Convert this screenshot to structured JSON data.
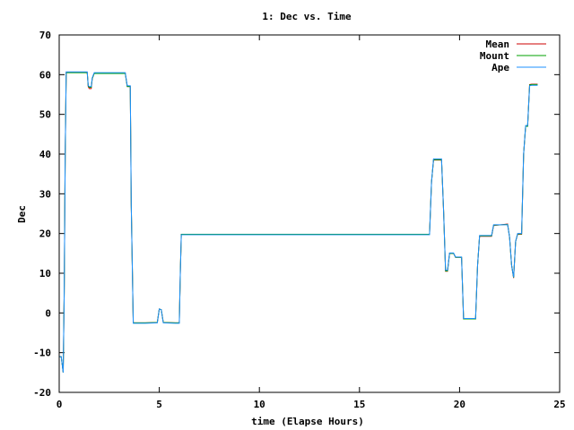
{
  "chart_data": {
    "type": "line",
    "title": "1: Dec vs. Time",
    "xlabel": "time (Elapse Hours)",
    "ylabel": "Dec",
    "xlim": [
      0,
      25
    ],
    "ylim": [
      -20,
      70
    ],
    "xticks": [
      0,
      5,
      10,
      15,
      20,
      25
    ],
    "yticks": [
      -20,
      -10,
      0,
      10,
      20,
      30,
      40,
      50,
      60,
      70
    ],
    "grid": false,
    "legend_position": "top-right",
    "series": [
      {
        "name": "Mean",
        "color": "#cc0000",
        "points": [
          [
            0,
            -11
          ],
          [
            0.1,
            -11
          ],
          [
            0.15,
            -13
          ],
          [
            0.2,
            -15
          ],
          [
            0.25,
            5
          ],
          [
            0.3,
            40
          ],
          [
            0.35,
            60.6
          ],
          [
            1.3,
            60.6
          ],
          [
            1.4,
            60.6
          ],
          [
            1.45,
            57
          ],
          [
            1.5,
            56.5
          ],
          [
            1.6,
            56.5
          ],
          [
            1.65,
            59
          ],
          [
            1.75,
            60.4
          ],
          [
            3.2,
            60.4
          ],
          [
            3.3,
            60.4
          ],
          [
            3.4,
            57
          ],
          [
            3.55,
            57
          ],
          [
            3.6,
            27
          ],
          [
            3.7,
            -2.5
          ],
          [
            4.3,
            -2.5
          ],
          [
            4.9,
            -2.4
          ],
          [
            5.0,
            1
          ],
          [
            5.1,
            0.8
          ],
          [
            5.2,
            -2.4
          ],
          [
            5.8,
            -2.5
          ],
          [
            6.0,
            -2.5
          ],
          [
            6.05,
            10
          ],
          [
            6.1,
            19.8
          ],
          [
            18.5,
            19.8
          ],
          [
            18.6,
            33
          ],
          [
            18.7,
            38.5
          ],
          [
            19.1,
            38.5
          ],
          [
            19.2,
            26
          ],
          [
            19.3,
            10.5
          ],
          [
            19.4,
            10.5
          ],
          [
            19.5,
            15
          ],
          [
            19.7,
            15
          ],
          [
            19.8,
            14
          ],
          [
            20.1,
            14
          ],
          [
            20.2,
            -1.5
          ],
          [
            20.8,
            -1.5
          ],
          [
            20.9,
            12
          ],
          [
            21.0,
            19.3
          ],
          [
            21.6,
            19.3
          ],
          [
            21.7,
            22
          ],
          [
            22.4,
            22.4
          ],
          [
            22.5,
            19
          ],
          [
            22.6,
            12
          ],
          [
            22.7,
            8.8
          ],
          [
            22.8,
            18
          ],
          [
            22.9,
            19.8
          ],
          [
            23.1,
            19.8
          ],
          [
            23.2,
            40
          ],
          [
            23.3,
            47
          ],
          [
            23.4,
            47
          ],
          [
            23.5,
            57.5
          ],
          [
            23.6,
            57.6
          ],
          [
            23.9,
            57.6
          ]
        ]
      },
      {
        "name": "Mount",
        "color": "#00a000",
        "points": [
          [
            0,
            -11
          ],
          [
            0.1,
            -11
          ],
          [
            0.15,
            -13
          ],
          [
            0.2,
            -15
          ],
          [
            0.25,
            5
          ],
          [
            0.3,
            40
          ],
          [
            0.35,
            60.5
          ],
          [
            1.3,
            60.5
          ],
          [
            1.4,
            60.5
          ],
          [
            1.45,
            57.2
          ],
          [
            1.5,
            56.8
          ],
          [
            1.6,
            56.8
          ],
          [
            1.65,
            59
          ],
          [
            1.75,
            60.3
          ],
          [
            3.2,
            60.3
          ],
          [
            3.3,
            60.3
          ],
          [
            3.4,
            57
          ],
          [
            3.55,
            57
          ],
          [
            3.6,
            27
          ],
          [
            3.7,
            -2.5
          ],
          [
            4.3,
            -2.5
          ],
          [
            4.9,
            -2.4
          ],
          [
            5.0,
            1
          ],
          [
            5.1,
            0.8
          ],
          [
            5.2,
            -2.4
          ],
          [
            5.8,
            -2.5
          ],
          [
            6.0,
            -2.5
          ],
          [
            6.05,
            10
          ],
          [
            6.1,
            19.8
          ],
          [
            18.5,
            19.8
          ],
          [
            18.6,
            33
          ],
          [
            18.7,
            38.6
          ],
          [
            19.1,
            38.6
          ],
          [
            19.2,
            26
          ],
          [
            19.3,
            10.6
          ],
          [
            19.4,
            10.6
          ],
          [
            19.5,
            15
          ],
          [
            19.7,
            15
          ],
          [
            19.8,
            14
          ],
          [
            20.1,
            14
          ],
          [
            20.2,
            -1.5
          ],
          [
            20.8,
            -1.5
          ],
          [
            20.9,
            12
          ],
          [
            21.0,
            19.4
          ],
          [
            21.6,
            19.4
          ],
          [
            21.7,
            22.1
          ],
          [
            22.4,
            22.3
          ],
          [
            22.5,
            19
          ],
          [
            22.6,
            12
          ],
          [
            22.7,
            8.9
          ],
          [
            22.8,
            18
          ],
          [
            22.9,
            19.9
          ],
          [
            23.1,
            19.9
          ],
          [
            23.2,
            40
          ],
          [
            23.3,
            47
          ],
          [
            23.4,
            47
          ],
          [
            23.5,
            57.4
          ],
          [
            23.6,
            57.5
          ],
          [
            23.9,
            57.5
          ]
        ]
      },
      {
        "name": "Ape",
        "color": "#1e90ff",
        "points": [
          [
            0,
            -11
          ],
          [
            0.1,
            -11
          ],
          [
            0.15,
            -13
          ],
          [
            0.2,
            -15
          ],
          [
            0.25,
            5
          ],
          [
            0.3,
            40
          ],
          [
            0.35,
            60.7
          ],
          [
            1.3,
            60.7
          ],
          [
            1.4,
            60.7
          ],
          [
            1.45,
            57.3
          ],
          [
            1.5,
            57
          ],
          [
            1.6,
            57
          ],
          [
            1.65,
            59.2
          ],
          [
            1.75,
            60.5
          ],
          [
            3.2,
            60.5
          ],
          [
            3.3,
            60.5
          ],
          [
            3.4,
            57.2
          ],
          [
            3.55,
            57.2
          ],
          [
            3.6,
            27
          ],
          [
            3.7,
            -2.6
          ],
          [
            4.3,
            -2.6
          ],
          [
            4.9,
            -2.5
          ],
          [
            5.0,
            1
          ],
          [
            5.1,
            0.8
          ],
          [
            5.2,
            -2.5
          ],
          [
            5.8,
            -2.6
          ],
          [
            6.0,
            -2.6
          ],
          [
            6.05,
            10
          ],
          [
            6.1,
            19.7
          ],
          [
            18.5,
            19.7
          ],
          [
            18.6,
            33
          ],
          [
            18.7,
            38.8
          ],
          [
            19.1,
            38.8
          ],
          [
            19.2,
            26
          ],
          [
            19.3,
            10.8
          ],
          [
            19.4,
            10.8
          ],
          [
            19.5,
            15.1
          ],
          [
            19.7,
            15.1
          ],
          [
            19.8,
            14.1
          ],
          [
            20.1,
            14.1
          ],
          [
            20.2,
            -1.4
          ],
          [
            20.8,
            -1.4
          ],
          [
            20.9,
            12
          ],
          [
            21.0,
            19.5
          ],
          [
            21.6,
            19.5
          ],
          [
            21.7,
            22.2
          ],
          [
            22.4,
            22.2
          ],
          [
            22.5,
            19
          ],
          [
            22.6,
            12
          ],
          [
            22.7,
            9
          ],
          [
            22.8,
            18
          ],
          [
            22.9,
            20
          ],
          [
            23.1,
            20
          ],
          [
            23.2,
            40
          ],
          [
            23.3,
            47.2
          ],
          [
            23.4,
            47.2
          ],
          [
            23.5,
            57.2
          ],
          [
            23.6,
            57.3
          ],
          [
            23.9,
            57.3
          ]
        ]
      }
    ]
  }
}
